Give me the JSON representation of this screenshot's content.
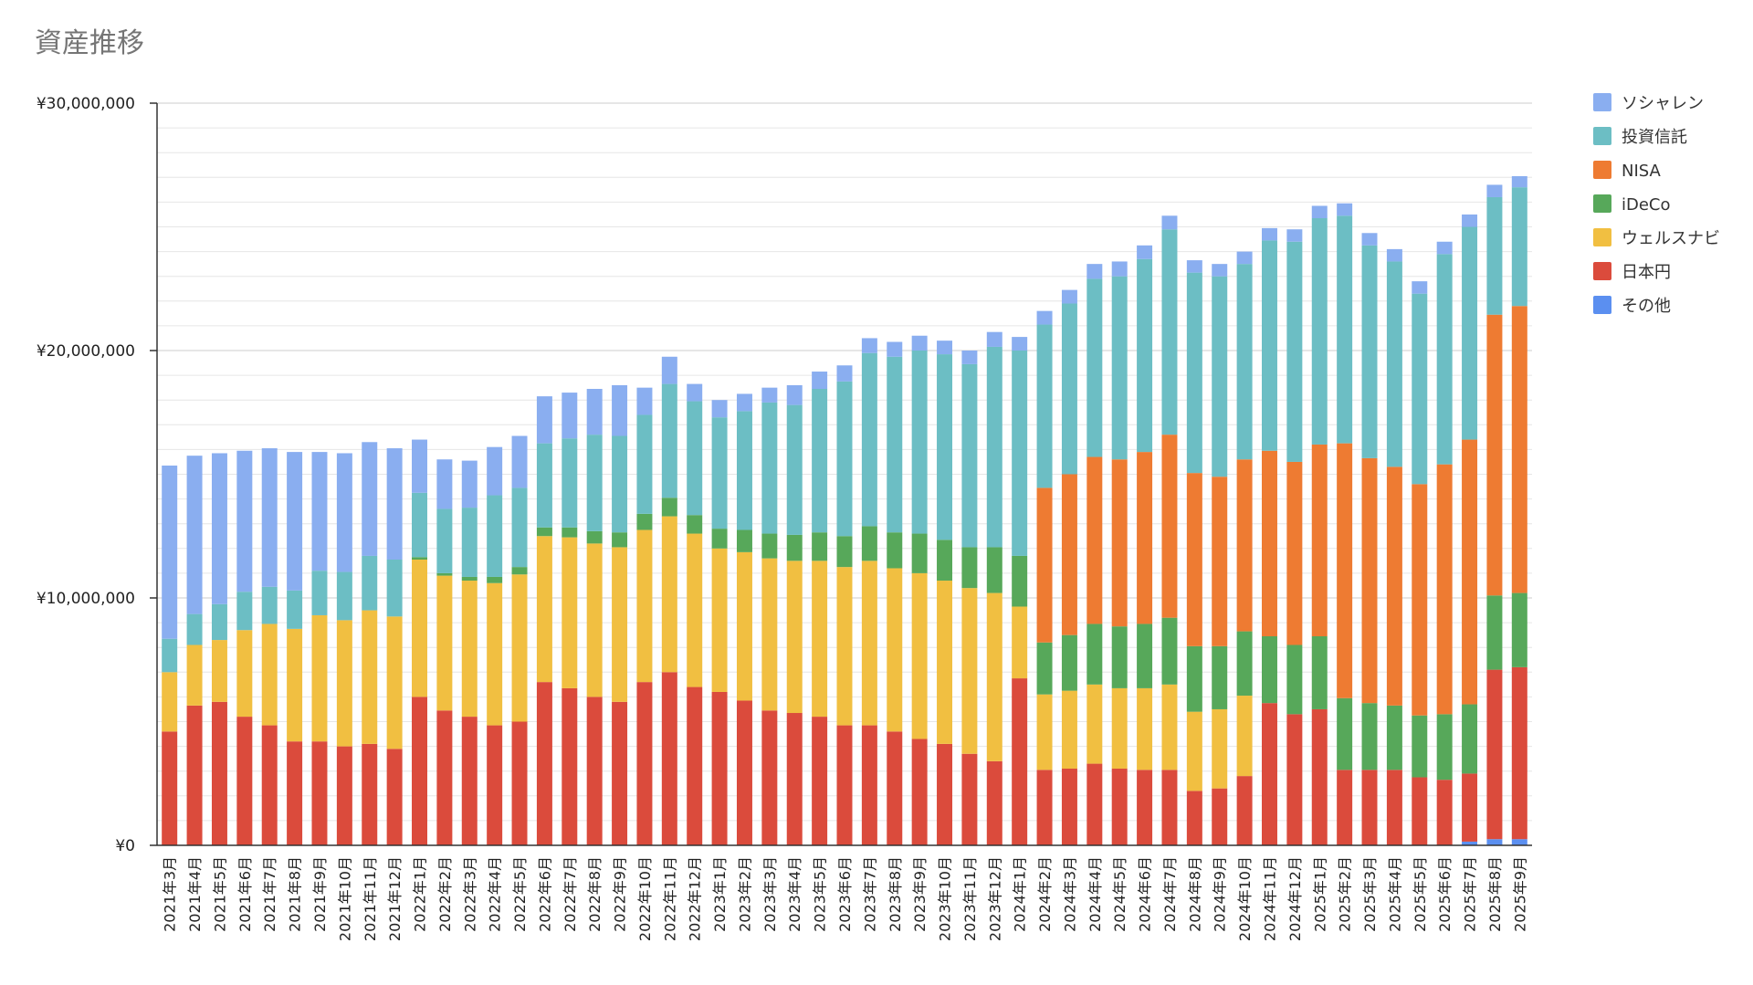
{
  "chart_data": {
    "type": "bar",
    "stacked": true,
    "title": "資産推移",
    "xlabel": "",
    "ylabel": "",
    "ylim": [
      0,
      30000000
    ],
    "yticks": [
      {
        "value": 0,
        "label": "¥0"
      },
      {
        "value": 10000000,
        "label": "¥10,000,000"
      },
      {
        "value": 20000000,
        "label": "¥20,000,000"
      },
      {
        "value": 30000000,
        "label": "¥30,000,000"
      }
    ],
    "grid": true,
    "legend_position": "right",
    "categories": [
      "2021年3月",
      "2021年4月",
      "2021年5月",
      "2021年6月",
      "2021年7月",
      "2021年8月",
      "2021年9月",
      "2021年10月",
      "2021年11月",
      "2021年12月",
      "2022年1月",
      "2022年2月",
      "2022年3月",
      "2022年4月",
      "2022年5月",
      "2022年6月",
      "2022年7月",
      "2022年8月",
      "2022年9月",
      "2022年10月",
      "2022年11月",
      "2022年12月",
      "2023年1月",
      "2023年2月",
      "2023年3月",
      "2023年4月",
      "2023年5月",
      "2023年6月",
      "2023年7月",
      "2023年8月",
      "2023年9月",
      "2023年10月",
      "2023年11月",
      "2023年12月",
      "2024年1月",
      "2024年2月",
      "2024年3月",
      "2024年4月",
      "2024年5月",
      "2024年6月",
      "2024年7月",
      "2024年8月",
      "2024年9月",
      "2024年10月",
      "2024年11月",
      "2024年12月",
      "2025年1月",
      "2025年2月",
      "2025年3月",
      "2025年4月",
      "2025年5月",
      "2025年6月",
      "2025年7月",
      "2025年8月",
      "2025年9月"
    ],
    "series": [
      {
        "name": "その他",
        "color": "#5b8ff0",
        "values": [
          0,
          0,
          0,
          0,
          0,
          0,
          0,
          0,
          0,
          0,
          0,
          0,
          0,
          0,
          0,
          0,
          0,
          0,
          0,
          0,
          0,
          0,
          0,
          0,
          0,
          0,
          0,
          0,
          0,
          0,
          0,
          0,
          0,
          0,
          0,
          0,
          0,
          0,
          0,
          0,
          0,
          0,
          0,
          0,
          0,
          0,
          0,
          0,
          0,
          0,
          0,
          0,
          150000,
          250000,
          250000
        ]
      },
      {
        "name": "日本円",
        "color": "#db4b3c",
        "values": [
          4600000,
          5650000,
          5800000,
          5200000,
          4850000,
          4200000,
          4200000,
          4000000,
          4100000,
          3900000,
          6000000,
          5450000,
          5200000,
          4850000,
          5000000,
          6600000,
          6350000,
          6000000,
          5800000,
          6600000,
          7000000,
          6400000,
          6200000,
          5850000,
          5450000,
          5350000,
          5200000,
          4850000,
          4850000,
          4600000,
          4300000,
          4100000,
          3700000,
          3400000,
          6750000,
          3050000,
          3100000,
          3300000,
          3100000,
          3050000,
          3050000,
          2200000,
          2300000,
          2800000,
          5750000,
          5300000,
          5500000,
          3050000,
          3050000,
          3050000,
          2750000,
          2650000,
          2750000,
          6850000,
          6950000
        ]
      },
      {
        "name": "ウェルスナビ",
        "color": "#f1bf41",
        "values": [
          2400000,
          2450000,
          2500000,
          3500000,
          4100000,
          4550000,
          5100000,
          5100000,
          5400000,
          5350000,
          5550000,
          5450000,
          5500000,
          5750000,
          5950000,
          5900000,
          6100000,
          6200000,
          6250000,
          6150000,
          6300000,
          6200000,
          5800000,
          6000000,
          6150000,
          6150000,
          6300000,
          6400000,
          6650000,
          6600000,
          6700000,
          6600000,
          6700000,
          6800000,
          2900000,
          3050000,
          3150000,
          3200000,
          3250000,
          3300000,
          3450000,
          3200000,
          3200000,
          3250000,
          0,
          0,
          0,
          0,
          0,
          0,
          0,
          0,
          0,
          0,
          0
        ]
      },
      {
        "name": "iDeCo",
        "color": "#57a85a",
        "values": [
          0,
          0,
          0,
          0,
          0,
          0,
          0,
          0,
          0,
          0,
          100000,
          100000,
          150000,
          250000,
          300000,
          350000,
          400000,
          500000,
          600000,
          650000,
          750000,
          750000,
          800000,
          900000,
          1000000,
          1050000,
          1150000,
          1250000,
          1400000,
          1450000,
          1600000,
          1650000,
          1650000,
          1850000,
          2050000,
          2100000,
          2250000,
          2450000,
          2500000,
          2600000,
          2700000,
          2650000,
          2550000,
          2600000,
          2700000,
          2800000,
          2950000,
          2900000,
          2700000,
          2600000,
          2500000,
          2650000,
          2800000,
          3000000,
          3000000
        ]
      },
      {
        "name": "NISA",
        "color": "#ee7b32",
        "values": [
          0,
          0,
          0,
          0,
          0,
          0,
          0,
          0,
          0,
          0,
          0,
          0,
          0,
          0,
          0,
          0,
          0,
          0,
          0,
          0,
          0,
          0,
          0,
          0,
          0,
          0,
          0,
          0,
          0,
          0,
          0,
          0,
          0,
          0,
          0,
          6250000,
          6500000,
          6750000,
          6750000,
          6950000,
          7400000,
          7000000,
          6850000,
          6950000,
          7500000,
          7400000,
          7750000,
          10300000,
          9900000,
          9650000,
          9350000,
          10100000,
          10700000,
          11350000,
          11600000
        ]
      },
      {
        "name": "投資信託",
        "color": "#6cbec4",
        "values": [
          1350000,
          1250000,
          1450000,
          1550000,
          1500000,
          1550000,
          1800000,
          1950000,
          2200000,
          2300000,
          2600000,
          2600000,
          2800000,
          3300000,
          3200000,
          3400000,
          3600000,
          3900000,
          3900000,
          4000000,
          4600000,
          4600000,
          4500000,
          4800000,
          5300000,
          5250000,
          5800000,
          6250000,
          7000000,
          7100000,
          7400000,
          7500000,
          7400000,
          8100000,
          8300000,
          6600000,
          6900000,
          7200000,
          7400000,
          7800000,
          8300000,
          8100000,
          8100000,
          7900000,
          8500000,
          8900000,
          9150000,
          9200000,
          8600000,
          8300000,
          7700000,
          8500000,
          8600000,
          4750000,
          4800000
        ]
      },
      {
        "name": "ソシャレン",
        "color": "#8aaef0",
        "values": [
          7000000,
          6400000,
          6100000,
          5700000,
          5600000,
          5600000,
          4800000,
          4800000,
          4600000,
          4500000,
          2150000,
          2000000,
          1900000,
          1950000,
          2100000,
          1900000,
          1850000,
          1850000,
          2050000,
          1100000,
          1100000,
          700000,
          700000,
          700000,
          600000,
          800000,
          700000,
          650000,
          600000,
          600000,
          600000,
          550000,
          550000,
          600000,
          550000,
          550000,
          550000,
          600000,
          600000,
          550000,
          550000,
          500000,
          500000,
          500000,
          500000,
          500000,
          500000,
          500000,
          500000,
          500000,
          500000,
          500000,
          500000,
          500000,
          450000
        ]
      }
    ],
    "legend_order": [
      "ソシャレン",
      "投資信託",
      "NISA",
      "iDeCo",
      "ウェルスナビ",
      "日本円",
      "その他"
    ]
  }
}
